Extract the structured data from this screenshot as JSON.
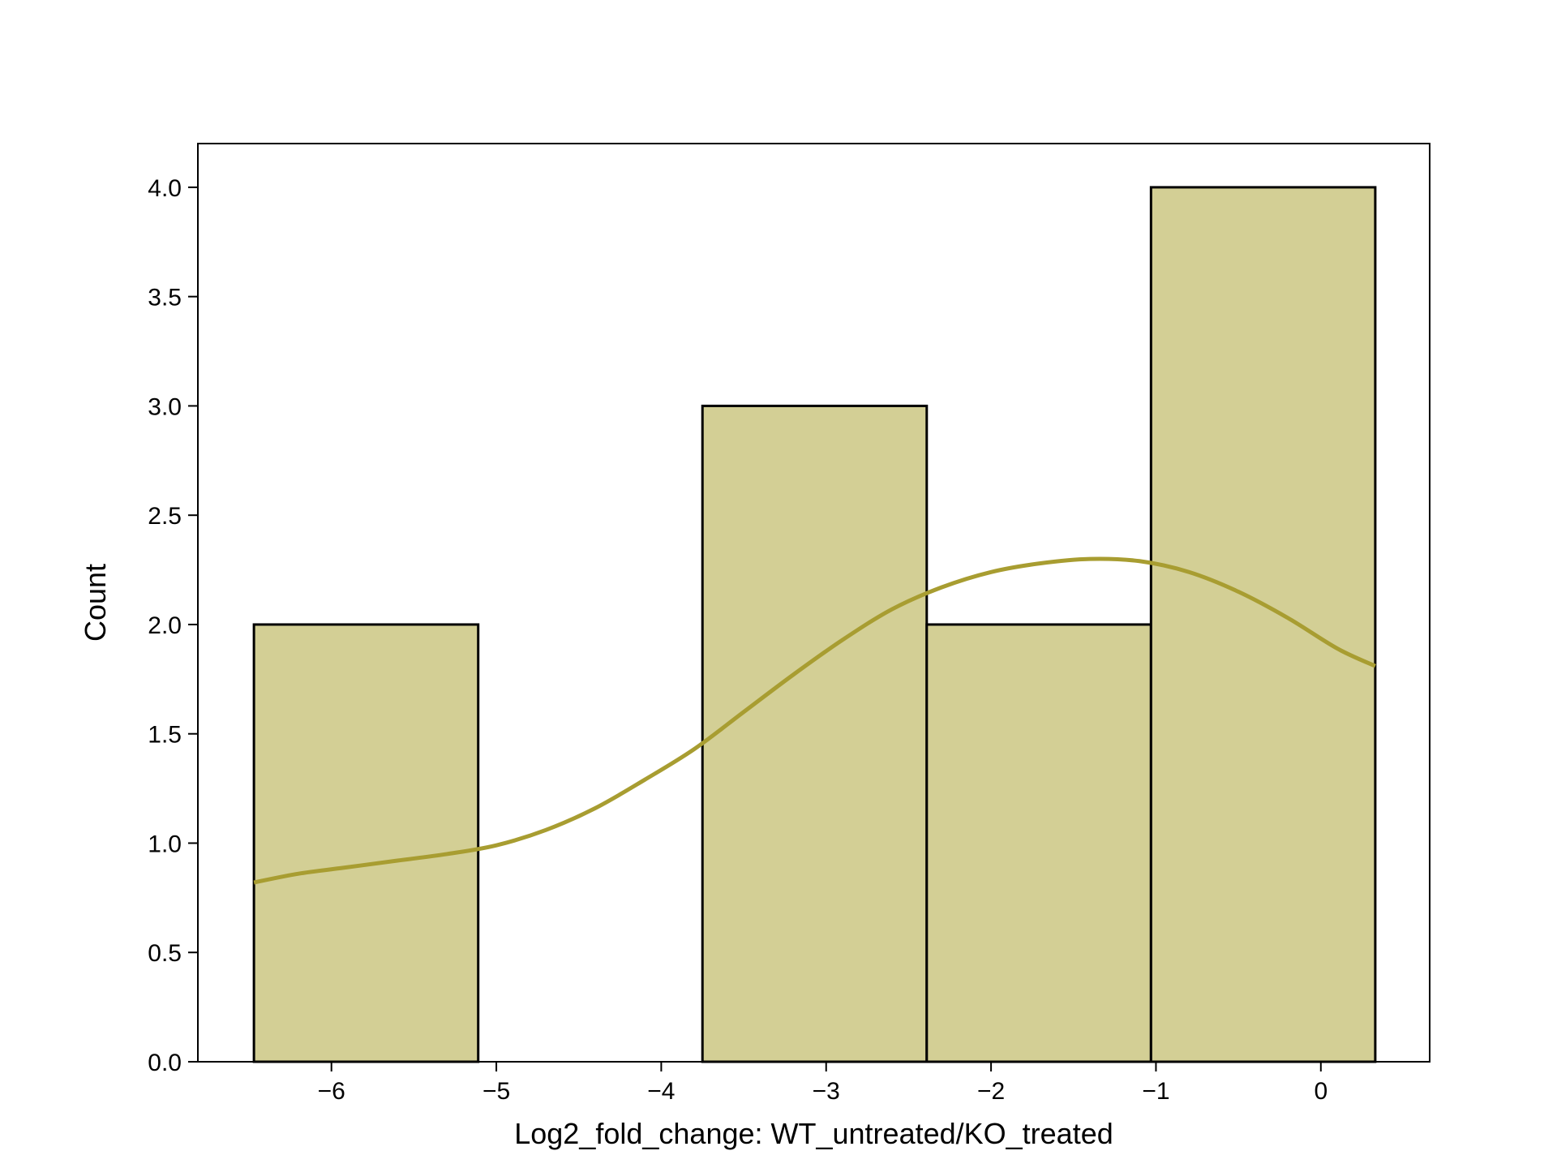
{
  "chart_data": {
    "type": "bar",
    "title": "",
    "xlabel": "Log2_fold_change: WT_untreated/KO_treated",
    "ylabel": "Count",
    "xlim": [
      -6.81,
      0.66
    ],
    "ylim": [
      0,
      4.2
    ],
    "xticks": [
      -6,
      -5,
      -4,
      -3,
      -2,
      -1,
      0
    ],
    "xtick_labels": [
      "−6",
      "−5",
      "−4",
      "−3",
      "−2",
      "−1",
      "0"
    ],
    "yticks": [
      0,
      0.5,
      1,
      1.5,
      2,
      2.5,
      3,
      3.5,
      4
    ],
    "ytick_labels": [
      "0.0",
      "0.5",
      "1.0",
      "1.5",
      "2.0",
      "2.5",
      "3.0",
      "3.5",
      "4.0"
    ],
    "bins": [
      {
        "x0": -6.47,
        "x1": -5.11,
        "count": 2
      },
      {
        "x0": -5.11,
        "x1": -3.75,
        "count": 0
      },
      {
        "x0": -3.75,
        "x1": -2.39,
        "count": 3
      },
      {
        "x0": -2.39,
        "x1": -1.03,
        "count": 2
      },
      {
        "x0": -1.03,
        "x1": 0.33,
        "count": 4
      }
    ],
    "kde": {
      "x": [
        -6.47,
        -6.2,
        -5.9,
        -5.6,
        -5.3,
        -5.0,
        -4.7,
        -4.4,
        -4.1,
        -3.8,
        -3.5,
        -3.2,
        -2.9,
        -2.6,
        -2.3,
        -2.0,
        -1.7,
        -1.4,
        -1.1,
        -0.8,
        -0.5,
        -0.2,
        0.1,
        0.33
      ],
      "y": [
        0.82,
        0.86,
        0.89,
        0.92,
        0.95,
        0.99,
        1.06,
        1.16,
        1.29,
        1.43,
        1.6,
        1.77,
        1.93,
        2.07,
        2.17,
        2.24,
        2.28,
        2.3,
        2.29,
        2.24,
        2.15,
        2.03,
        1.89,
        1.81
      ]
    },
    "grid": false,
    "legend": "none",
    "colors": {
      "bar_fill": "#d3cf95",
      "bar_edge": "#000000",
      "kde_line": "#a89d31",
      "axis": "#000000"
    }
  }
}
